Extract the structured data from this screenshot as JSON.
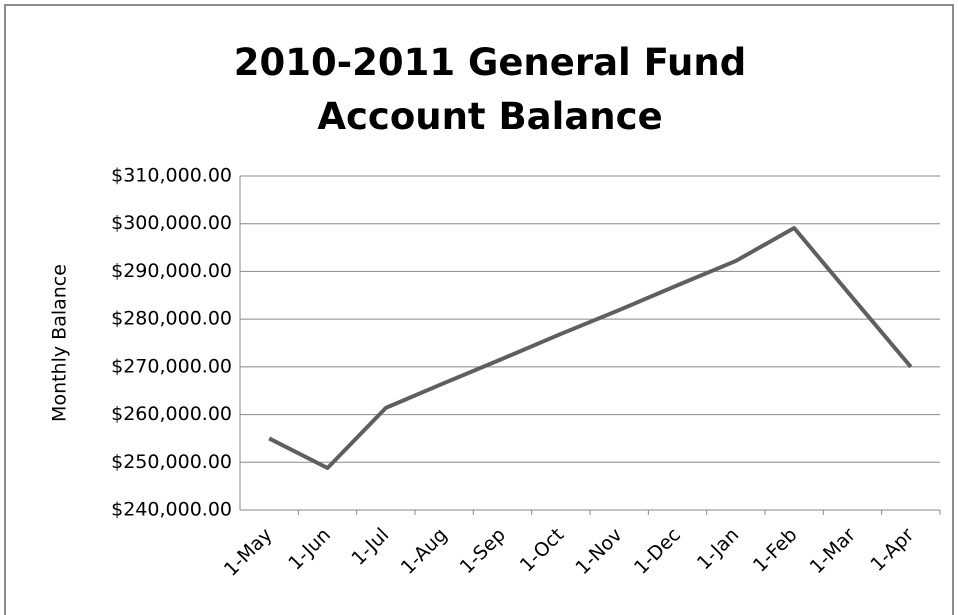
{
  "chart_data": {
    "type": "line",
    "title": "2010-2011 General Fund Account Balance",
    "y_label": "Monthly Balance",
    "categories": [
      "1-May",
      "1-Jun",
      "1-Jul",
      "1-Aug",
      "1-Sep",
      "1-Oct",
      "1-Nov",
      "1-Dec",
      "1-Jan",
      "1-Feb",
      "1-Mar",
      "1-Apr"
    ],
    "series": [
      {
        "name": "Monthly Balance",
        "color": "#5f5f5f",
        "values": [
          255000,
          248800,
          261400,
          266600,
          271700,
          276900,
          281900,
          287100,
          292200,
          299100,
          284500,
          270000
        ]
      }
    ],
    "ylim": [
      240000,
      310000
    ],
    "yticks": [
      {
        "value": 240000,
        "label": "$240,000.00"
      },
      {
        "value": 250000,
        "label": "$250,000.00"
      },
      {
        "value": 260000,
        "label": "$260,000.00"
      },
      {
        "value": 270000,
        "label": "$270,000.00"
      },
      {
        "value": 280000,
        "label": "$280,000.00"
      },
      {
        "value": 290000,
        "label": "$290,000.00"
      },
      {
        "value": 300000,
        "label": "$300,000.00"
      },
      {
        "value": 310000,
        "label": "$310,000.00"
      }
    ],
    "grid": true
  }
}
